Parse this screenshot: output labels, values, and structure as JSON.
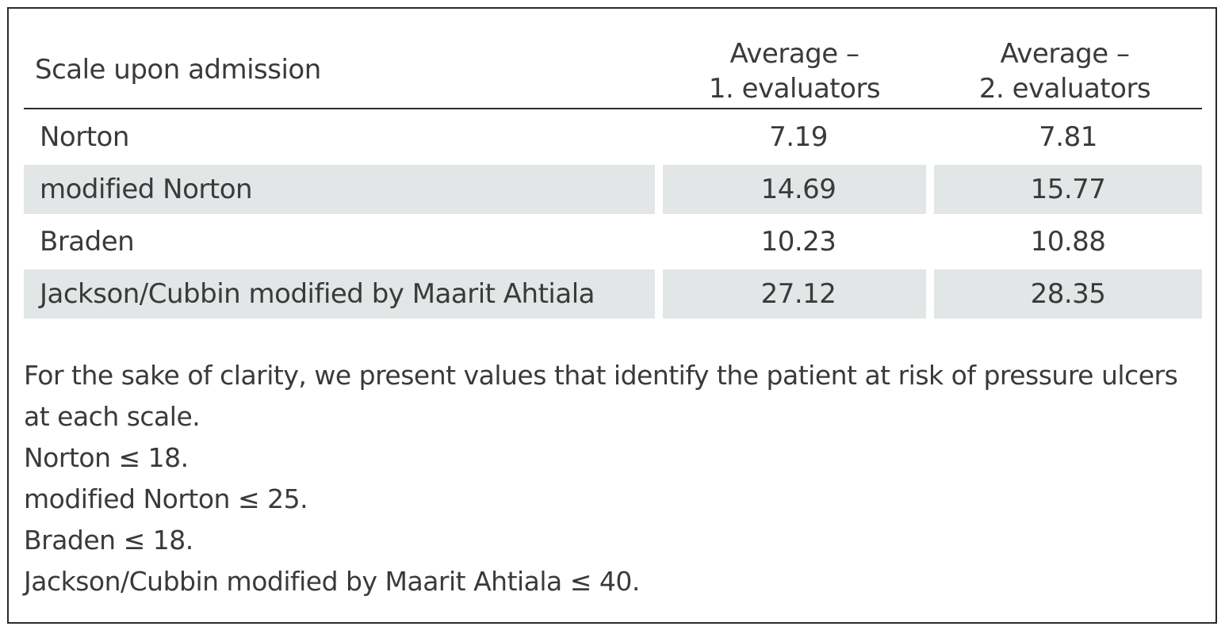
{
  "table": {
    "header": {
      "col1": "Scale upon admission",
      "col2_line1": "Average –",
      "col2_line2": "1. evaluators",
      "col3_line1": "Average –",
      "col3_line2": "2. evaluators"
    },
    "rows": [
      {
        "scale": "Norton",
        "avg1": "7.19",
        "avg2": "7.81"
      },
      {
        "scale": "modified Norton",
        "avg1": "14.69",
        "avg2": "15.77"
      },
      {
        "scale": "Braden",
        "avg1": "10.23",
        "avg2": "10.88"
      },
      {
        "scale": "Jackson/Cubbin modified by Maarit Ahtiala",
        "avg1": "27.12",
        "avg2": "28.35"
      }
    ]
  },
  "notes": {
    "intro": "For the sake of clarity, we present values that identify the patient at risk of pressure ulcers at each scale.",
    "items": [
      "Norton  ≤ 18.",
      "modified Norton ≤ 25.",
      "Braden ≤ 18.",
      "Jackson/Cubbin modified by Maarit Ahtiala  ≤ 40."
    ]
  }
}
